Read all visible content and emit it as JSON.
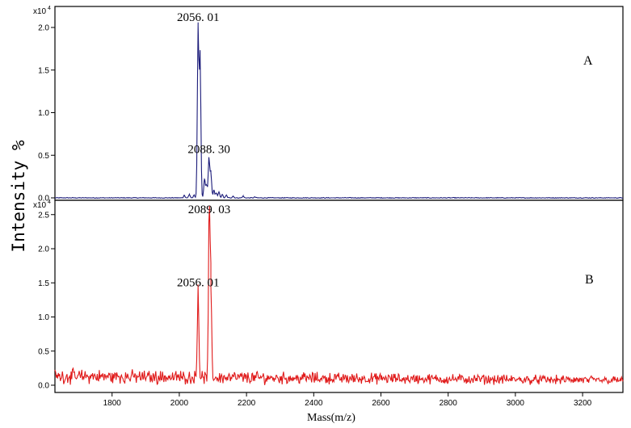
{
  "chart_data": {
    "type": "line",
    "ylabel": "Intensity %",
    "xlabel": "Mass(m/z)",
    "xlim": [
      1630,
      3320
    ],
    "x_ticks": [
      1800,
      2000,
      2200,
      2400,
      2600,
      2800,
      3000,
      3200
    ],
    "panels": [
      {
        "label": "A",
        "multiplier": "x10",
        "multiplier_exp": "4",
        "ylim": [
          -0.01,
          2.1
        ],
        "y_ticks": [
          0.0,
          0.5,
          1.0,
          1.5,
          2.0
        ],
        "y_tick_labels": [
          "0.0",
          "0.5",
          "1.0",
          "1.5",
          "2.0"
        ],
        "color": "#1c1c7a",
        "noise_level": 0.008,
        "peaks": [
          {
            "x": 2015,
            "y": 0.03
          },
          {
            "x": 2030,
            "y": 0.04
          },
          {
            "x": 2044,
            "y": 0.03
          },
          {
            "x": 2056.01,
            "y": 2.02
          },
          {
            "x": 2062,
            "y": 1.68
          },
          {
            "x": 2075,
            "y": 0.22
          },
          {
            "x": 2081,
            "y": 0.15
          },
          {
            "x": 2088.3,
            "y": 0.47
          },
          {
            "x": 2094,
            "y": 0.3
          },
          {
            "x": 2103,
            "y": 0.09
          },
          {
            "x": 2110,
            "y": 0.06
          },
          {
            "x": 2118,
            "y": 0.07
          },
          {
            "x": 2128,
            "y": 0.04
          },
          {
            "x": 2140,
            "y": 0.03
          },
          {
            "x": 2160,
            "y": 0.02
          },
          {
            "x": 2190,
            "y": 0.02
          },
          {
            "x": 2225,
            "y": 0.01
          }
        ],
        "annotations": [
          {
            "text": "2056. 01",
            "x": 2056.01,
            "y": 2.02
          },
          {
            "text": "2088. 30",
            "x": 2088.3,
            "y": 0.47
          }
        ]
      },
      {
        "label": "B",
        "multiplier": "x10",
        "multiplier_exp": "4",
        "ylim": [
          -0.05,
          2.6
        ],
        "y_ticks": [
          0.0,
          0.5,
          1.0,
          1.5,
          2.0,
          2.5
        ],
        "y_tick_labels": [
          "0.0",
          "0.5",
          "1.0",
          "1.5",
          "2.0",
          "2.5"
        ],
        "color": "#e01a1a",
        "noise_level": 0.1,
        "peaks": [
          {
            "x": 2056.01,
            "y": 1.38
          },
          {
            "x": 2089.03,
            "y": 2.45
          },
          {
            "x": 2094,
            "y": 1.4
          }
        ],
        "annotations": [
          {
            "text": "2056. 01",
            "x": 2056.01,
            "y": 1.38
          },
          {
            "text": "2089. 03",
            "x": 2089.03,
            "y": 2.45
          }
        ]
      }
    ]
  }
}
